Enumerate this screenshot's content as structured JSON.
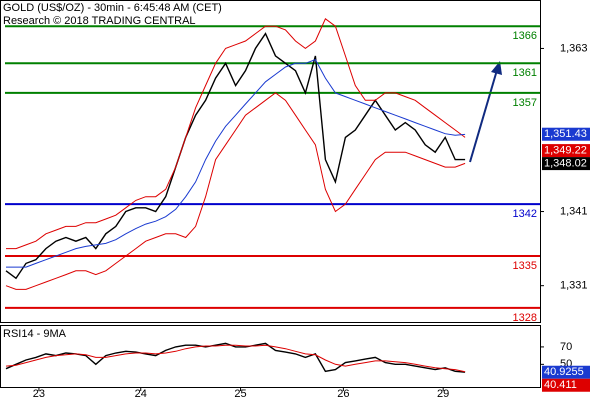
{
  "chart_data": [
    {
      "type": "line",
      "title": "GOLD (US$/OZ) - 30min - 6:45:48 AM (CET)",
      "subtitle": "Research © 2018 TRADING CENTRAL",
      "xlim": [
        -0.5,
        53.5
      ],
      "ylim": [
        1326.1,
        1369.4
      ],
      "yticks": [
        {
          "value": 1363,
          "label": "1,363"
        },
        {
          "value": 1341,
          "label": "1,341"
        },
        {
          "value": 1331,
          "label": "1,331"
        }
      ],
      "series": [
        {
          "color": "#000000",
          "values": [
            1333,
            1332,
            1334,
            1334.5,
            1336,
            1337,
            1337.5,
            1337,
            1337.5,
            1336,
            1338,
            1339,
            1341,
            1341.5,
            1341.5,
            1341,
            1343,
            1347,
            1351,
            1354,
            1356,
            1359,
            1361,
            1358,
            1360,
            1363,
            1365,
            1362,
            1361,
            1360,
            1357,
            1362,
            1348,
            1345,
            1351,
            1352,
            1354,
            1356,
            1354,
            1352,
            1353,
            1352,
            1350,
            1349,
            1351,
            1348,
            1348
          ]
        },
        {
          "color": "#dd0000",
          "values": [
            1336,
            1336,
            1336.5,
            1337,
            1338,
            1338.5,
            1339,
            1339,
            1339.5,
            1339.5,
            1340,
            1340.5,
            1341.5,
            1342.5,
            1343,
            1343,
            1344,
            1347,
            1351,
            1355,
            1358,
            1361,
            1363,
            1363.5,
            1364,
            1365,
            1366,
            1366,
            1365.5,
            1364,
            1363,
            1364,
            1367,
            1366,
            1362,
            1358,
            1356,
            1356,
            1357,
            1357,
            1356.5,
            1356,
            1355,
            1354,
            1353,
            1352,
            1351
          ]
        },
        {
          "color": "#dd0000",
          "values": [
            1331,
            1330.5,
            1330.5,
            1331,
            1331.5,
            1332,
            1332.5,
            1333,
            1333,
            1332.5,
            1333,
            1334,
            1335,
            1336,
            1337,
            1337.5,
            1338,
            1338,
            1337.5,
            1339,
            1343,
            1348,
            1350,
            1352,
            1354,
            1355,
            1356,
            1357,
            1356,
            1354,
            1352,
            1350,
            1344,
            1341,
            1342,
            1344,
            1346,
            1348,
            1349,
            1349,
            1349,
            1348.5,
            1348,
            1347.5,
            1347,
            1347,
            1347.5
          ]
        },
        {
          "color": "#1a3ad0",
          "values": [
            1333.5,
            1333.5,
            1333.5,
            1334,
            1334.5,
            1335,
            1335.5,
            1336,
            1336.3,
            1336.5,
            1336.7,
            1337.2,
            1338,
            1338.7,
            1339.3,
            1339.7,
            1340.3,
            1341.3,
            1343,
            1345,
            1348,
            1350.5,
            1352.5,
            1354,
            1355.5,
            1357,
            1358.5,
            1359.5,
            1360.5,
            1361,
            1361,
            1361.5,
            1359,
            1357,
            1356.5,
            1356,
            1355.5,
            1355,
            1354.5,
            1354,
            1353.5,
            1353,
            1352.5,
            1352,
            1351.5,
            1351.3,
            1351.4
          ]
        }
      ],
      "levels": {
        "values": [
          1366,
          1361,
          1357,
          1342,
          1335,
          1328
        ],
        "colors": [
          "#008000",
          "#008000",
          "#008000",
          "#0000cc",
          "#dd0000",
          "#dd0000"
        ]
      },
      "price_tags": {
        "values": [
          1351.43,
          1349.22,
          1348.02
        ],
        "value_labels": [
          "1,351.43",
          "1,349.22",
          "1,348.02"
        ],
        "colors": [
          "#1a3ad0",
          "#dd0000",
          "#000000"
        ]
      }
    },
    {
      "type": "line",
      "title": "RSI14 - 9MA",
      "xlim": [
        -0.5,
        53.5
      ],
      "ylim": [
        24,
        94
      ],
      "yticks": [
        70,
        50
      ],
      "xticks": [
        {
          "value": 3.3,
          "label": "23"
        },
        {
          "value": 13.5,
          "label": "24"
        },
        {
          "value": 23.5,
          "label": "25"
        },
        {
          "value": 33.8,
          "label": "26"
        },
        {
          "value": 43.8,
          "label": "29"
        }
      ],
      "series": [
        {
          "color": "#000000",
          "values": [
            45,
            50,
            55,
            58,
            62,
            60,
            63,
            62,
            60,
            50,
            60,
            63,
            65,
            64,
            62,
            60,
            66,
            70,
            72,
            72,
            70,
            72,
            74,
            70,
            70,
            72,
            74,
            66,
            64,
            62,
            58,
            62,
            42,
            44,
            52,
            54,
            56,
            58,
            52,
            50,
            50,
            48,
            46,
            44,
            46,
            42,
            41
          ]
        },
        {
          "color": "#dd0000",
          "values": [
            48,
            49,
            52,
            55,
            58,
            60,
            61,
            62,
            61,
            58,
            58,
            60,
            62,
            63,
            63,
            62,
            63,
            65,
            68,
            70,
            71,
            71,
            72,
            72,
            71,
            71,
            72,
            70,
            68,
            65,
            62,
            61,
            55,
            50,
            48,
            50,
            52,
            54,
            54,
            53,
            52,
            50,
            48,
            46,
            45,
            44,
            41.5
          ]
        }
      ],
      "price_tags": {
        "values": [
          40.9255,
          40.411
        ],
        "colors": [
          "#1a3ad0",
          "#dd0000"
        ]
      }
    }
  ]
}
